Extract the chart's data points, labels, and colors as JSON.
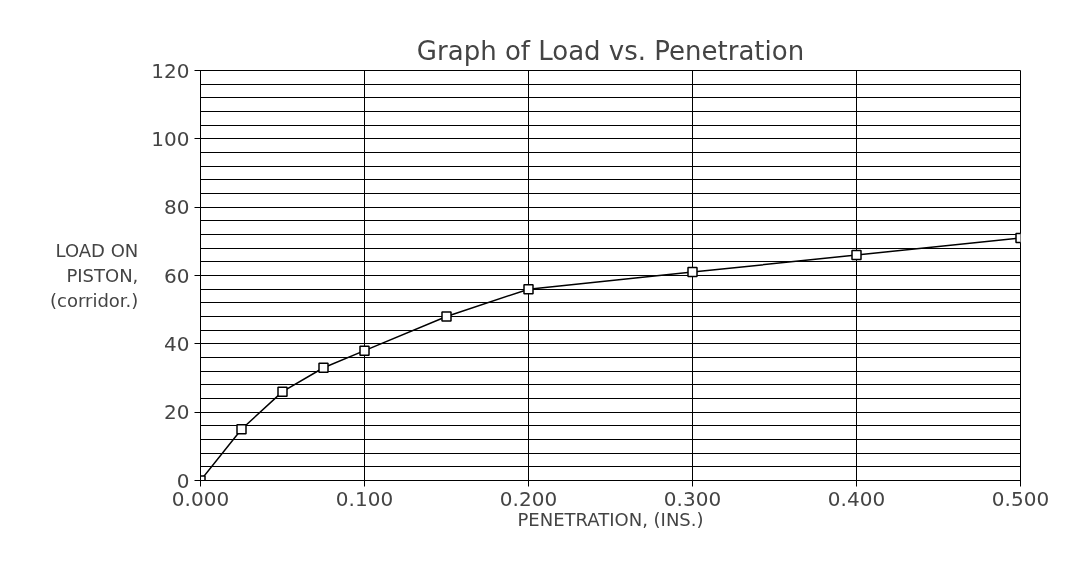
{
  "chart_data": {
    "type": "line",
    "title": "Graph of Load vs. Penetration",
    "xlabel": "PENETRATION, (INS.)",
    "ylabel": "LOAD ON\nPISTON,\n(corridor.)",
    "x": [
      0,
      0.025,
      0.05,
      0.075,
      0.1,
      0.15,
      0.2,
      0.3,
      0.4,
      0.5
    ],
    "series": [
      {
        "color": "#000000",
        "values": [
          0,
          15,
          26,
          33,
          38,
          48,
          56,
          61,
          66,
          71
        ]
      }
    ],
    "xlim": [
      0,
      0.5
    ],
    "ylim": [
      0,
      120
    ],
    "xticks": [
      {
        "value": 0,
        "label": "0.000"
      },
      {
        "value": 0.1,
        "label": "0.100"
      },
      {
        "value": 0.2,
        "label": "0.200"
      },
      {
        "value": 0.3,
        "label": "0.300"
      },
      {
        "value": 0.4,
        "label": "0.400"
      },
      {
        "value": 0.5,
        "label": "0.500"
      }
    ],
    "yticks": [
      0,
      20,
      40,
      60,
      80,
      100,
      120
    ],
    "grid": true,
    "marker": "square",
    "line_style": "solid"
  }
}
